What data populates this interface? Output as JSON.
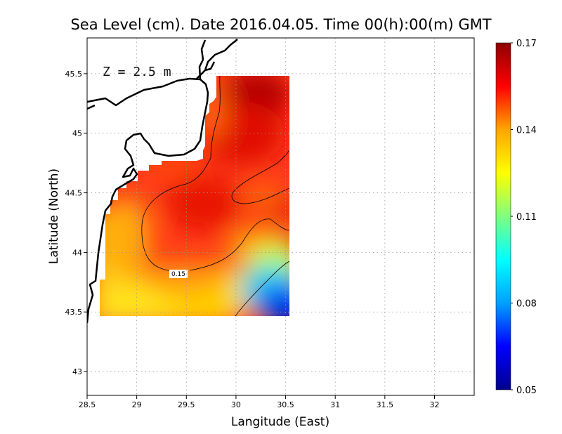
{
  "chart_data": {
    "type": "heatmap",
    "title": "Sea Level (cm). Date 2016.04.05. Time 00(h):00(m) GMT",
    "xlabel": "Langitude (East)",
    "ylabel": "Latitude (North)",
    "annotation": "Z = 2.5 m",
    "xlim": [
      28.5,
      32.4
    ],
    "ylim": [
      42.8,
      45.8
    ],
    "x_ticks": [
      28.5,
      29,
      29.5,
      30,
      30.5,
      31,
      31.5,
      32
    ],
    "x_tick_labels": [
      "28.5",
      "29",
      "29.5",
      "30",
      "30.5",
      "31",
      "31.5",
      "32"
    ],
    "y_ticks": [
      43,
      43.5,
      44,
      44.5,
      45,
      45.5
    ],
    "y_tick_labels": [
      "43",
      "43.5",
      "44",
      "44.5",
      "45",
      "45.5"
    ],
    "grid": true,
    "colorbar": {
      "min": 0.05,
      "max": 0.17,
      "ticks": [
        0.05,
        0.08,
        0.11,
        0.14,
        0.17
      ],
      "tick_labels": [
        "0.05",
        "0.08",
        "0.11",
        "0.14",
        "0.17"
      ],
      "colors": [
        "#00008b",
        "#0000ff",
        "#00a0ff",
        "#00ffff",
        "#80ff80",
        "#ffff00",
        "#ffa500",
        "#ff0000",
        "#8b0000"
      ]
    },
    "contour_labels": [
      {
        "text": "0.15",
        "lon": 29.62,
        "lat": 43.82
      }
    ],
    "field_domain": {
      "lon": [
        28.63,
        30.52
      ],
      "lat": [
        43.48,
        45.5
      ]
    }
  }
}
